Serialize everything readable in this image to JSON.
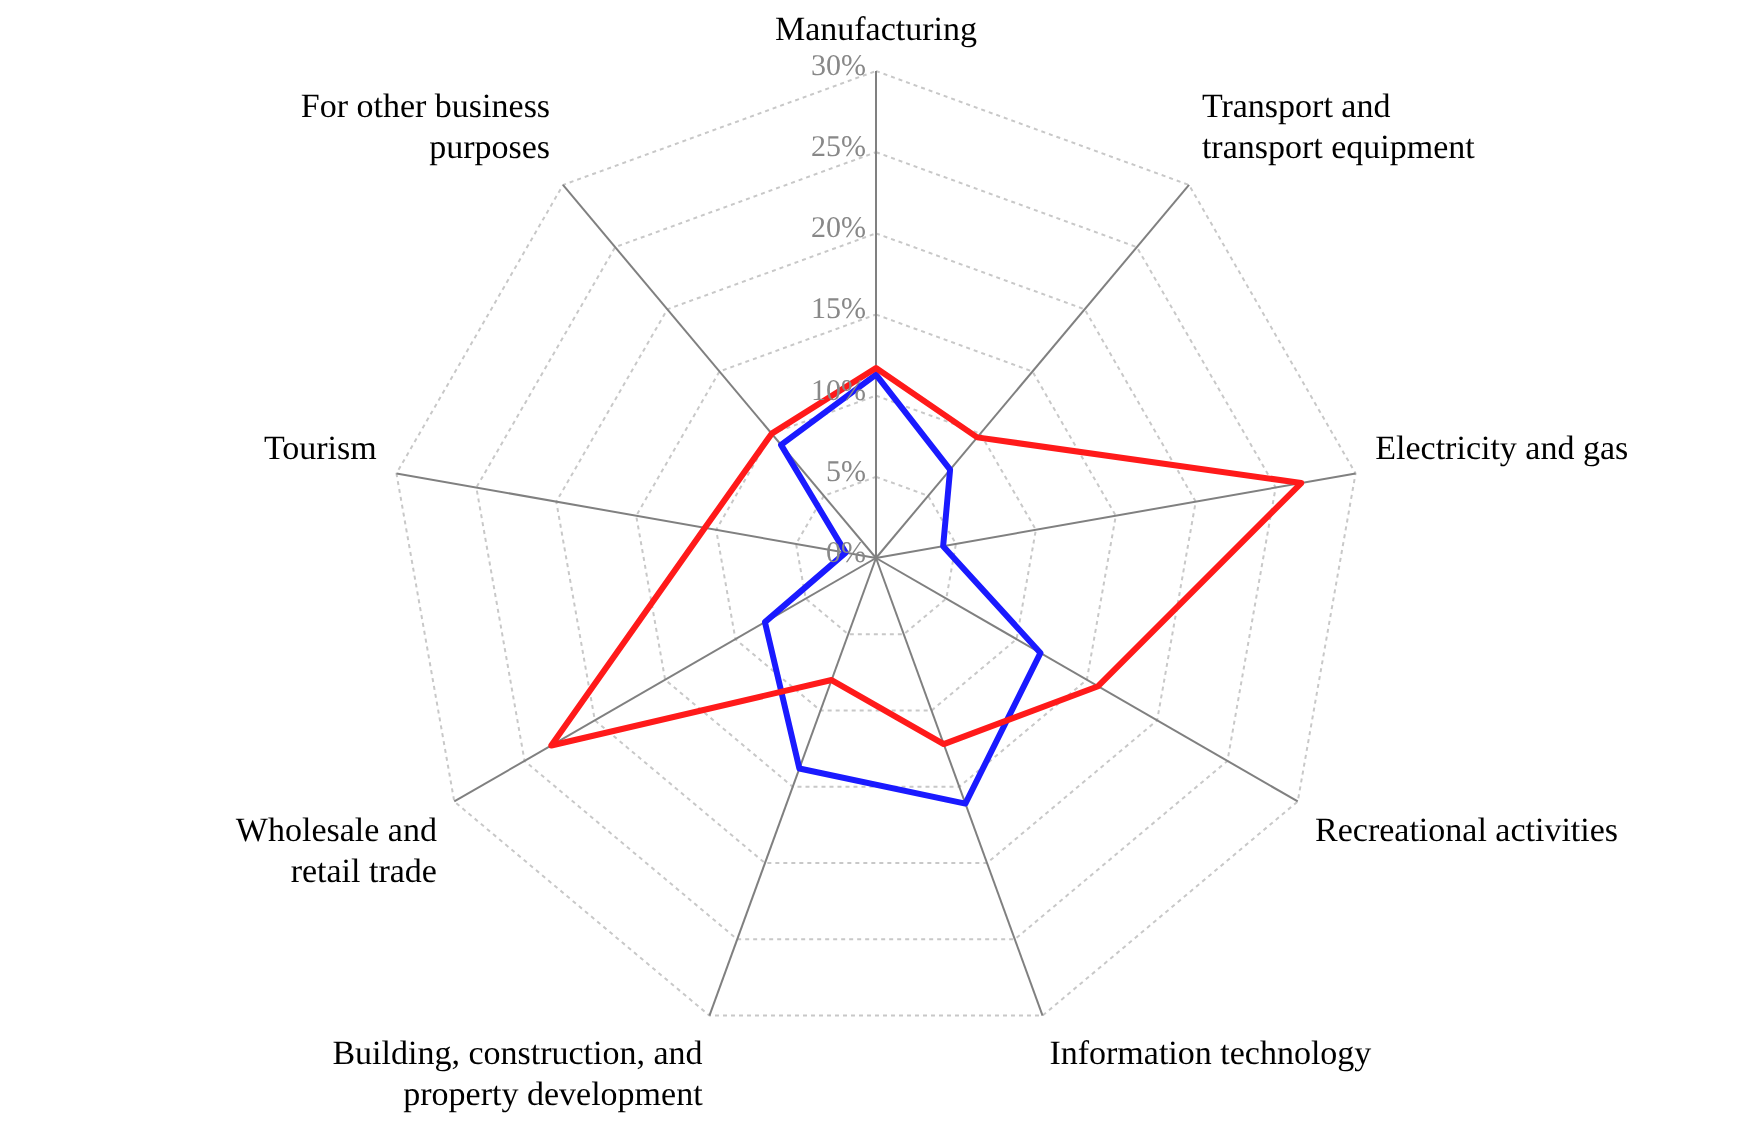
{
  "chart_data": {
    "type": "radar",
    "categories": [
      "Manufacturing",
      "Transport and transport equipment",
      "Electricity and gas",
      "Recreational activities",
      "Information technology",
      "Building, construction, and property development",
      "Wholesale and retail trade",
      "Tourism",
      "For other business purposes"
    ],
    "series": [
      {
        "color": "#ff1a1a",
        "values": [
          11.7,
          9.7,
          26.6,
          15.8,
          12.2,
          8,
          23.1,
          10.7,
          10
        ]
      },
      {
        "color": "#1a1aff",
        "values": [
          11.3,
          7.1,
          4.2,
          11.7,
          16.1,
          13.8,
          7.9,
          1.9,
          9.1
        ]
      }
    ],
    "ylim": [
      0,
      30
    ],
    "yticks": [
      {
        "value": 0,
        "label": "0%"
      },
      {
        "value": 5,
        "label": "5%"
      },
      {
        "value": 10,
        "label": "10%"
      },
      {
        "value": 15,
        "label": "15%"
      },
      {
        "value": 20,
        "label": "20%"
      },
      {
        "value": 25,
        "label": "25%"
      },
      {
        "value": 30,
        "label": "30%"
      }
    ],
    "grid": true,
    "marker": "none",
    "line_style": "solid"
  }
}
